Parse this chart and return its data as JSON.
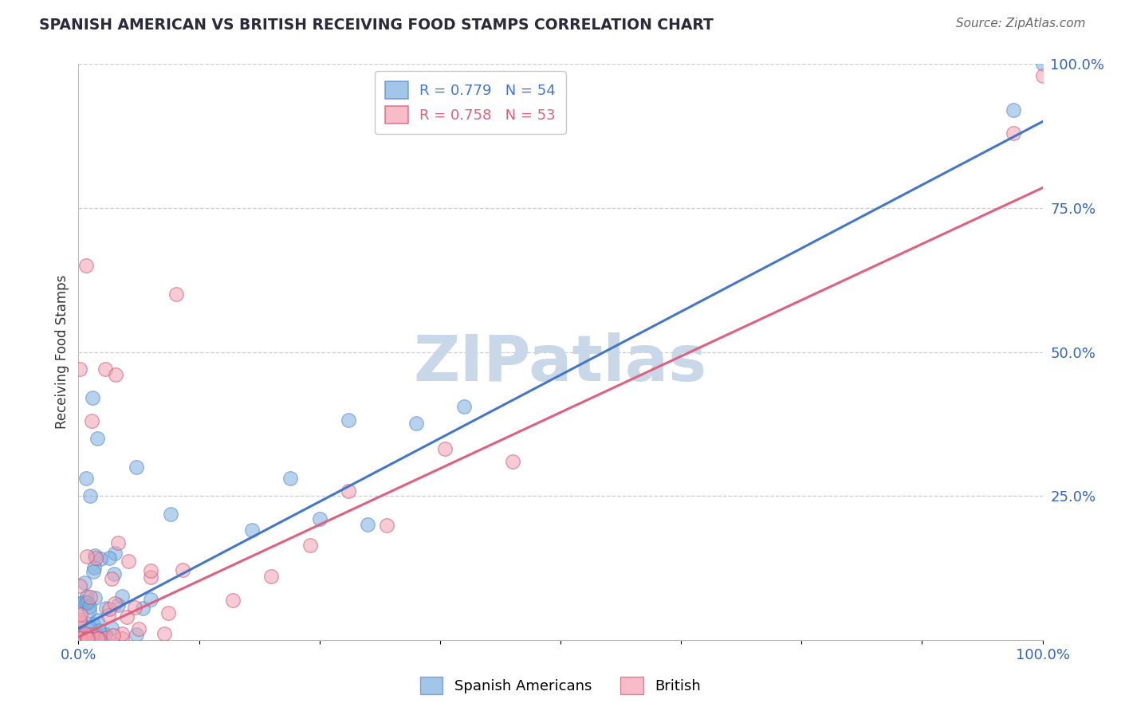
{
  "title": "SPANISH AMERICAN VS BRITISH RECEIVING FOOD STAMPS CORRELATION CHART",
  "source": "Source: ZipAtlas.com",
  "ylabel": "Receiving Food Stamps",
  "xlim": [
    0.0,
    1.0
  ],
  "ylim": [
    0.0,
    1.0
  ],
  "ytick_values": [
    0.25,
    0.5,
    0.75,
    1.0
  ],
  "ytick_labels": [
    "25.0%",
    "50.0%",
    "75.0%",
    "100.0%"
  ],
  "grid_color": "#cccccc",
  "background_color": "#ffffff",
  "watermark": "ZIPatlas",
  "watermark_color": "#c8d8e8",
  "blue_R": 0.779,
  "blue_N": 54,
  "pink_R": 0.758,
  "pink_N": 53,
  "blue_color": "#7aaedd",
  "pink_color": "#f4a0b0",
  "blue_line_color": "#4477cc",
  "pink_line_color": "#e06080",
  "blue_edge_color": "#5588cc",
  "pink_edge_color": "#cc5577",
  "legend_label_blue": "Spanish Americans",
  "legend_label_pink": "British",
  "title_color": "#2a2a3a",
  "source_color": "#666666",
  "axis_tick_color": "#3366bb",
  "ylabel_color": "#333333",
  "blue_line_slope": 0.88,
  "blue_line_intercept": 0.02,
  "pink_line_slope": 0.78,
  "pink_line_intercept": 0.005
}
